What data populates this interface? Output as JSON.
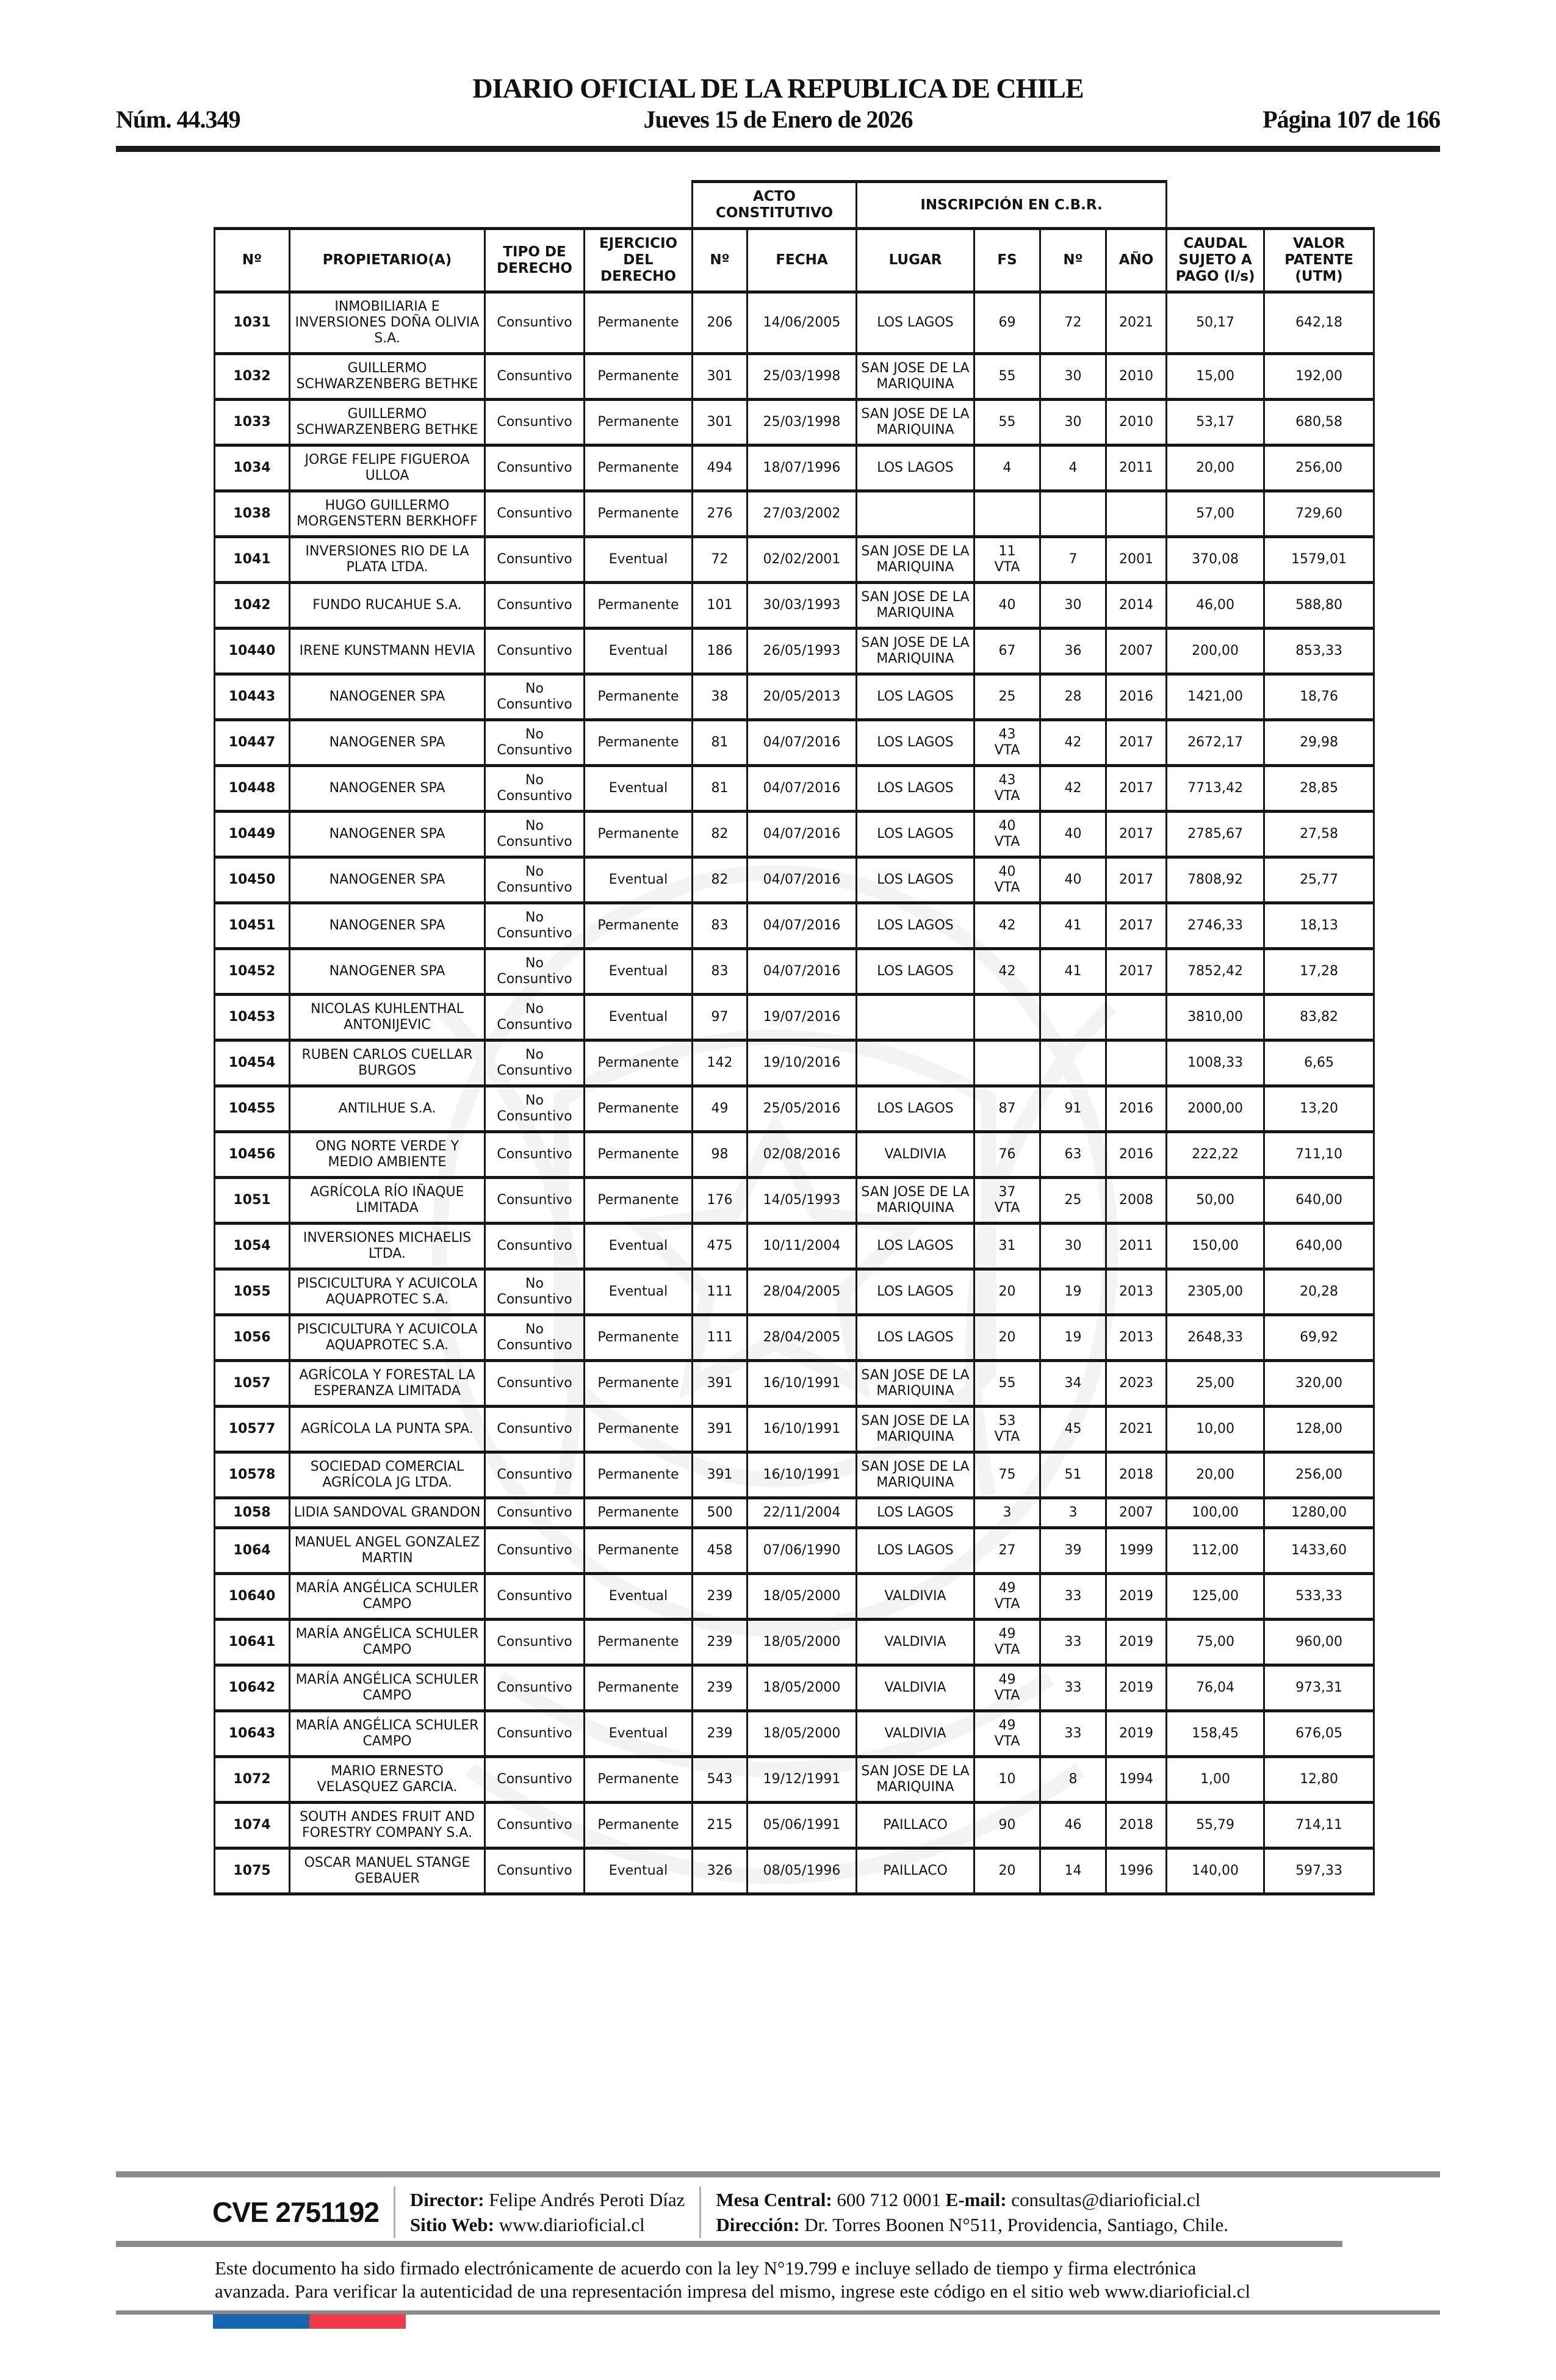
{
  "header": {
    "title": "DIARIO OFICIAL DE LA REPUBLICA DE CHILE",
    "issue": "Núm. 44.349",
    "date": "Jueves 15 de Enero de 2026",
    "page_info": "Página 107 de 166"
  },
  "table": {
    "group_headers": {
      "acto": "ACTO CONSTITUTIVO",
      "inscripcion": "INSCRIPCIÓN EN C.B.R."
    },
    "columns": [
      "Nº",
      "PROPIETARIO(A)",
      "TIPO DE DERECHO",
      "EJERCICIO DEL DERECHO",
      "Nº",
      "FECHA",
      "LUGAR",
      "FS",
      "Nº",
      "AÑO",
      "CAUDAL SUJETO A PAGO (l/s)",
      "VALOR PATENTE (UTM)"
    ],
    "rows": [
      [
        "1031",
        "INMOBILIARIA E INVERSIONES DOÑA OLIVIA S.A.",
        "Consuntivo",
        "Permanente",
        "206",
        "14/06/2005",
        "LOS LAGOS",
        "69",
        "72",
        "2021",
        "50,17",
        "642,18"
      ],
      [
        "1032",
        "GUILLERMO SCHWARZENBERG BETHKE",
        "Consuntivo",
        "Permanente",
        "301",
        "25/03/1998",
        "SAN JOSE DE LA MARIQUINA",
        "55",
        "30",
        "2010",
        "15,00",
        "192,00"
      ],
      [
        "1033",
        "GUILLERMO SCHWARZENBERG BETHKE",
        "Consuntivo",
        "Permanente",
        "301",
        "25/03/1998",
        "SAN JOSE DE LA MARIQUINA",
        "55",
        "30",
        "2010",
        "53,17",
        "680,58"
      ],
      [
        "1034",
        "JORGE FELIPE FIGUEROA ULLOA",
        "Consuntivo",
        "Permanente",
        "494",
        "18/07/1996",
        "LOS LAGOS",
        "4",
        "4",
        "2011",
        "20,00",
        "256,00"
      ],
      [
        "1038",
        "HUGO GUILLERMO MORGENSTERN BERKHOFF",
        "Consuntivo",
        "Permanente",
        "276",
        "27/03/2002",
        "",
        "",
        "",
        "",
        "57,00",
        "729,60"
      ],
      [
        "1041",
        "INVERSIONES RIO DE LA PLATA LTDA.",
        "Consuntivo",
        "Eventual",
        "72",
        "02/02/2001",
        "SAN JOSE DE LA MARIQUINA",
        "11\nVTA",
        "7",
        "2001",
        "370,08",
        "1579,01"
      ],
      [
        "1042",
        "FUNDO RUCAHUE S.A.",
        "Consuntivo",
        "Permanente",
        "101",
        "30/03/1993",
        "SAN JOSE DE LA MARIQUINA",
        "40",
        "30",
        "2014",
        "46,00",
        "588,80"
      ],
      [
        "10440",
        "IRENE KUNSTMANN HEVIA",
        "Consuntivo",
        "Eventual",
        "186",
        "26/05/1993",
        "SAN JOSE DE LA MARIQUINA",
        "67",
        "36",
        "2007",
        "200,00",
        "853,33"
      ],
      [
        "10443",
        "NANOGENER SPA",
        "No Consuntivo",
        "Permanente",
        "38",
        "20/05/2013",
        "LOS LAGOS",
        "25",
        "28",
        "2016",
        "1421,00",
        "18,76"
      ],
      [
        "10447",
        "NANOGENER SPA",
        "No Consuntivo",
        "Permanente",
        "81",
        "04/07/2016",
        "LOS LAGOS",
        "43\nVTA",
        "42",
        "2017",
        "2672,17",
        "29,98"
      ],
      [
        "10448",
        "NANOGENER SPA",
        "No Consuntivo",
        "Eventual",
        "81",
        "04/07/2016",
        "LOS LAGOS",
        "43\nVTA",
        "42",
        "2017",
        "7713,42",
        "28,85"
      ],
      [
        "10449",
        "NANOGENER SPA",
        "No Consuntivo",
        "Permanente",
        "82",
        "04/07/2016",
        "LOS LAGOS",
        "40\nVTA",
        "40",
        "2017",
        "2785,67",
        "27,58"
      ],
      [
        "10450",
        "NANOGENER SPA",
        "No Consuntivo",
        "Eventual",
        "82",
        "04/07/2016",
        "LOS LAGOS",
        "40\nVTA",
        "40",
        "2017",
        "7808,92",
        "25,77"
      ],
      [
        "10451",
        "NANOGENER SPA",
        "No Consuntivo",
        "Permanente",
        "83",
        "04/07/2016",
        "LOS LAGOS",
        "42",
        "41",
        "2017",
        "2746,33",
        "18,13"
      ],
      [
        "10452",
        "NANOGENER SPA",
        "No Consuntivo",
        "Eventual",
        "83",
        "04/07/2016",
        "LOS LAGOS",
        "42",
        "41",
        "2017",
        "7852,42",
        "17,28"
      ],
      [
        "10453",
        "NICOLAS KUHLENTHAL ANTONIJEVIC",
        "No Consuntivo",
        "Eventual",
        "97",
        "19/07/2016",
        "",
        "",
        "",
        "",
        "3810,00",
        "83,82"
      ],
      [
        "10454",
        "RUBEN CARLOS CUELLAR BURGOS",
        "No Consuntivo",
        "Permanente",
        "142",
        "19/10/2016",
        "",
        "",
        "",
        "",
        "1008,33",
        "6,65"
      ],
      [
        "10455",
        "ANTILHUE S.A.",
        "No Consuntivo",
        "Permanente",
        "49",
        "25/05/2016",
        "LOS LAGOS",
        "87",
        "91",
        "2016",
        "2000,00",
        "13,20"
      ],
      [
        "10456",
        "ONG NORTE VERDE Y MEDIO AMBIENTE",
        "Consuntivo",
        "Permanente",
        "98",
        "02/08/2016",
        "VALDIVIA",
        "76",
        "63",
        "2016",
        "222,22",
        "711,10"
      ],
      [
        "1051",
        "AGRÍCOLA RÍO IÑAQUE LIMITADA",
        "Consuntivo",
        "Permanente",
        "176",
        "14/05/1993",
        "SAN JOSE DE LA MARIQUINA",
        "37\nVTA",
        "25",
        "2008",
        "50,00",
        "640,00"
      ],
      [
        "1054",
        "INVERSIONES MICHAELIS LTDA.",
        "Consuntivo",
        "Eventual",
        "475",
        "10/11/2004",
        "LOS LAGOS",
        "31",
        "30",
        "2011",
        "150,00",
        "640,00"
      ],
      [
        "1055",
        "PISCICULTURA Y ACUICOLA AQUAPROTEC S.A.",
        "No Consuntivo",
        "Eventual",
        "111",
        "28/04/2005",
        "LOS LAGOS",
        "20",
        "19",
        "2013",
        "2305,00",
        "20,28"
      ],
      [
        "1056",
        "PISCICULTURA Y ACUICOLA AQUAPROTEC S.A.",
        "No Consuntivo",
        "Permanente",
        "111",
        "28/04/2005",
        "LOS LAGOS",
        "20",
        "19",
        "2013",
        "2648,33",
        "69,92"
      ],
      [
        "1057",
        "AGRÍCOLA Y FORESTAL LA ESPERANZA LIMITADA",
        "Consuntivo",
        "Permanente",
        "391",
        "16/10/1991",
        "SAN JOSE DE LA MARIQUINA",
        "55",
        "34",
        "2023",
        "25,00",
        "320,00"
      ],
      [
        "10577",
        "AGRÍCOLA LA PUNTA SPA.",
        "Consuntivo",
        "Permanente",
        "391",
        "16/10/1991",
        "SAN JOSE DE LA MARIQUINA",
        "53\nVTA",
        "45",
        "2021",
        "10,00",
        "128,00"
      ],
      [
        "10578",
        "SOCIEDAD COMERCIAL AGRÍCOLA JG LTDA.",
        "Consuntivo",
        "Permanente",
        "391",
        "16/10/1991",
        "SAN JOSE DE LA MARIQUINA",
        "75",
        "51",
        "2018",
        "20,00",
        "256,00"
      ],
      [
        "1058",
        "LIDIA SANDOVAL GRANDON",
        "Consuntivo",
        "Permanente",
        "500",
        "22/11/2004",
        "LOS LAGOS",
        "3",
        "3",
        "2007",
        "100,00",
        "1280,00"
      ],
      [
        "1064",
        "MANUEL ANGEL GONZALEZ MARTIN",
        "Consuntivo",
        "Permanente",
        "458",
        "07/06/1990",
        "LOS LAGOS",
        "27",
        "39",
        "1999",
        "112,00",
        "1433,60"
      ],
      [
        "10640",
        "MARÍA ANGÉLICA SCHULER CAMPO",
        "Consuntivo",
        "Eventual",
        "239",
        "18/05/2000",
        "VALDIVIA",
        "49\nVTA",
        "33",
        "2019",
        "125,00",
        "533,33"
      ],
      [
        "10641",
        "MARÍA ANGÉLICA SCHULER CAMPO",
        "Consuntivo",
        "Permanente",
        "239",
        "18/05/2000",
        "VALDIVIA",
        "49\nVTA",
        "33",
        "2019",
        "75,00",
        "960,00"
      ],
      [
        "10642",
        "MARÍA ANGÉLICA SCHULER CAMPO",
        "Consuntivo",
        "Permanente",
        "239",
        "18/05/2000",
        "VALDIVIA",
        "49\nVTA",
        "33",
        "2019",
        "76,04",
        "973,31"
      ],
      [
        "10643",
        "MARÍA ANGÉLICA SCHULER CAMPO",
        "Consuntivo",
        "Eventual",
        "239",
        "18/05/2000",
        "VALDIVIA",
        "49\nVTA",
        "33",
        "2019",
        "158,45",
        "676,05"
      ],
      [
        "1072",
        "MARIO ERNESTO VELASQUEZ GARCIA.",
        "Consuntivo",
        "Permanente",
        "543",
        "19/12/1991",
        "SAN JOSE DE LA MARIQUINA",
        "10",
        "8",
        "1994",
        "1,00",
        "12,80"
      ],
      [
        "1074",
        "SOUTH ANDES FRUIT AND FORESTRY COMPANY S.A.",
        "Consuntivo",
        "Permanente",
        "215",
        "05/06/1991",
        "PAILLACO",
        "90",
        "46",
        "2018",
        "55,79",
        "714,11"
      ],
      [
        "1075",
        "OSCAR MANUEL STANGE GEBAUER",
        "Consuntivo",
        "Eventual",
        "326",
        "08/05/1996",
        "PAILLACO",
        "20",
        "14",
        "1996",
        "140,00",
        "597,33"
      ]
    ]
  },
  "footer": {
    "cve": "CVE 2751192",
    "director_label": "Director:",
    "director_value": "Felipe Andrés Peroti Díaz",
    "sitio_label": "Sitio Web:",
    "sitio_value": "www.diarioficial.cl",
    "mesa_label": "Mesa Central:",
    "mesa_value": "600 712 0001",
    "email_label": "E-mail:",
    "email_value": "consultas@diarioficial.cl",
    "direccion_label": "Dirección:",
    "direccion_value": "Dr. Torres Boonen N°511, Providencia, Santiago, Chile.",
    "legal_line1": "Este documento ha sido firmado electrónicamente de acuerdo con la ley N°19.799 e incluye sellado de tiempo y firma electrónica",
    "legal_line2": "avanzada. Para verificar la autenticidad de una representación impresa del mismo, ingrese este código en el sitio web www.diarioficial.cl"
  },
  "colors": {
    "flag_blue": "#1565af",
    "flag_red": "#ee3a4b",
    "rule_gray": "#8c8c8c",
    "border_black": "#161616"
  }
}
